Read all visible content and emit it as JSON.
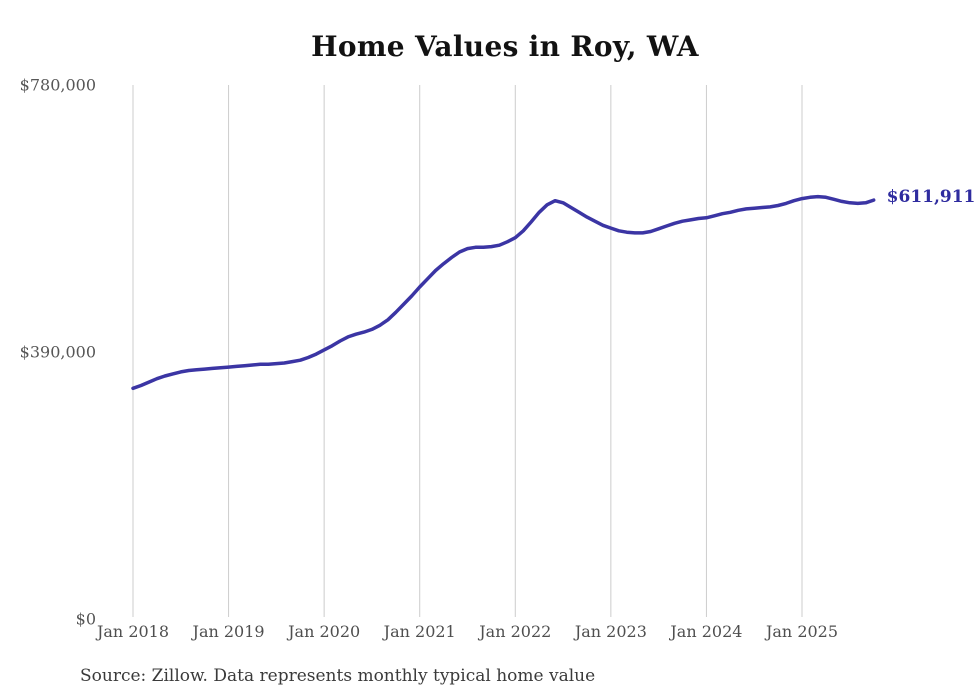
{
  "page": {
    "background": "#ffffff"
  },
  "chart_data": {
    "type": "line",
    "title": "Home Values in Roy, WA",
    "series_name": "Monthly typical home value",
    "x_interval": "monthly",
    "x_start_label": "Jan 2018",
    "x_end_label": "Oct 2025",
    "x_tick_labels": [
      "Jan 2018",
      "Jan 2019",
      "Jan 2020",
      "Jan 2021",
      "Jan 2022",
      "Jan 2023",
      "Jan 2024",
      "Jan 2025"
    ],
    "y_tick_labels": [
      {
        "label": "$780,000",
        "value": 780000
      },
      {
        "label": "$390,000",
        "value": 390000
      },
      {
        "label": "$0",
        "value": 0
      }
    ],
    "ylim": [
      0,
      780000
    ],
    "grid": "vertical-only",
    "legend": "none",
    "values": [
      337000,
      341000,
      346000,
      351000,
      355000,
      358000,
      361000,
      363000,
      364000,
      365000,
      366000,
      367000,
      368000,
      369000,
      370000,
      371000,
      372000,
      372000,
      373000,
      374000,
      376000,
      378000,
      382000,
      387000,
      393000,
      399000,
      406000,
      412000,
      416000,
      419000,
      423000,
      429000,
      437000,
      448000,
      460000,
      472000,
      485000,
      497000,
      509000,
      519000,
      528000,
      536000,
      541000,
      543000,
      543000,
      544000,
      546000,
      551000,
      557000,
      567000,
      580000,
      594000,
      605000,
      611000,
      608000,
      601000,
      594000,
      587000,
      581000,
      575000,
      571000,
      567000,
      565000,
      564000,
      564000,
      566000,
      570000,
      574000,
      578000,
      581000,
      583000,
      585000,
      586000,
      589000,
      592000,
      594000,
      597000,
      599000,
      600000,
      601000,
      602000,
      604000,
      607000,
      611000,
      614000,
      616000,
      617000,
      616000,
      613000,
      610000,
      608000,
      607000,
      608000,
      611911
    ],
    "end_label": "$611,911",
    "end_value": 611911,
    "line_color": "#3b35a4",
    "end_label_color": "#2f2c9f",
    "grid_color": "#cccccc"
  },
  "footer": {
    "source_note": "Source: Zillow. Data represents monthly typical home value"
  }
}
